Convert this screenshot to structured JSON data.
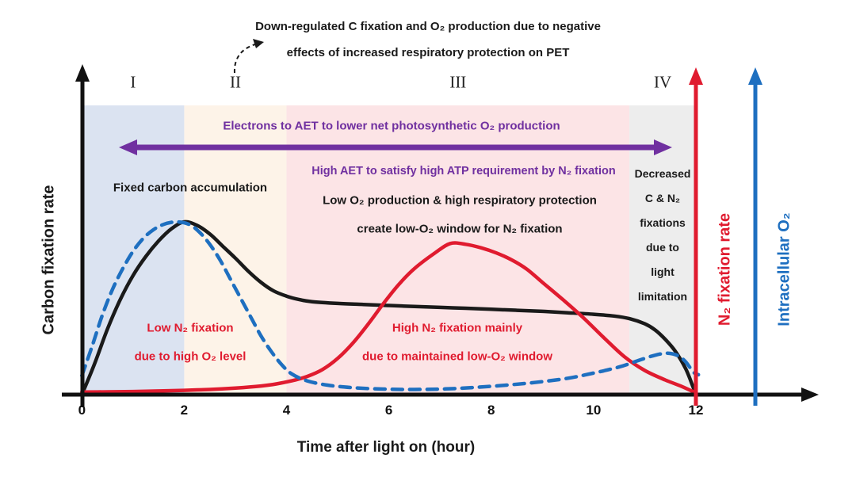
{
  "colors": {
    "carbon": "#1a1a1a",
    "n2_fixation": "#e01b2f",
    "intracellular_o2": "#1e6fc0",
    "aet_purple": "#7030a0",
    "phase1_band": "#dbe3f1",
    "phase2_band": "#fdf3e8",
    "phase3_band": "#fce4e6",
    "phase4_band": "#ededed"
  },
  "annotations": {
    "top_note_line1": "Down-regulated C fixation and O₂ production due to negative",
    "top_note_line2": "effects of increased respiratory protection on PET",
    "aet_heading": "Electrons to AET to lower net photosynthetic O₂ production",
    "fixed_carbon": "Fixed carbon accumulation",
    "high_aet": "High AET to satisfy high ATP requirement by N₂ fixation",
    "low_o2_line1": "Low O₂ production & high respiratory protection",
    "low_o2_line2": "create low-O₂ window for N₂ fixation",
    "decreased_lines": [
      "Decreased",
      "C & N₂",
      "fixations",
      "due to",
      "light",
      "limitation"
    ],
    "low_n2_line1": "Low N₂ fixation",
    "low_n2_line2": "due to high O₂ level",
    "high_n2_line1": "High N₂ fixation mainly",
    "high_n2_line2": "due to maintained low-O₂ window"
  },
  "axes_labels": {
    "y_left": "Carbon fixation rate",
    "y_right_red": "N₂ fixation rate",
    "y_right_blue": "Intracellular O₂",
    "x": "Time after light on (hour)"
  },
  "chart_data": {
    "type": "line",
    "xlabel": "Time after light on (hour)",
    "ylabel_left": "Carbon fixation rate",
    "ylabels_right": [
      "N₂ fixation rate",
      "Intracellular O₂"
    ],
    "x_ticks": [
      0,
      2,
      4,
      6,
      8,
      10,
      12
    ],
    "xlim": [
      0,
      13.3
    ],
    "ylim_relative": [
      0,
      100
    ],
    "grid": false,
    "legend_position": "right-axis-labels",
    "phases": [
      {
        "label": "I",
        "x_start": 0,
        "x_end": 2,
        "color": "#dbe3f1"
      },
      {
        "label": "II",
        "x_start": 2,
        "x_end": 4,
        "color": "#fdf3e8"
      },
      {
        "label": "III",
        "x_start": 4,
        "x_end": 10.7,
        "color": "#fce4e6"
      },
      {
        "label": "IV",
        "x_start": 10.7,
        "x_end": 12,
        "color": "#ededed"
      }
    ],
    "series": [
      {
        "id": "carbon-fixation",
        "name": "Carbon fixation rate",
        "color": "#1a1a1a",
        "style": "solid",
        "points": [
          [
            0,
            0
          ],
          [
            0.25,
            18
          ],
          [
            0.5,
            38
          ],
          [
            0.75,
            55
          ],
          [
            1.0,
            69
          ],
          [
            1.25,
            80
          ],
          [
            1.5,
            89
          ],
          [
            1.75,
            96
          ],
          [
            2.0,
            100
          ],
          [
            2.25,
            98
          ],
          [
            2.5,
            93
          ],
          [
            2.75,
            86
          ],
          [
            3.0,
            79
          ],
          [
            3.25,
            71.5
          ],
          [
            3.5,
            65
          ],
          [
            3.75,
            60
          ],
          [
            4.0,
            57
          ],
          [
            4.25,
            55
          ],
          [
            4.5,
            53.8
          ],
          [
            5.0,
            52.8
          ],
          [
            5.5,
            52.2
          ],
          [
            6.0,
            51.6
          ],
          [
            6.5,
            51
          ],
          [
            7.0,
            50.5
          ],
          [
            7.5,
            50
          ],
          [
            8.0,
            49.4
          ],
          [
            8.5,
            48.8
          ],
          [
            9.0,
            48.2
          ],
          [
            9.5,
            47.4
          ],
          [
            10.0,
            46.5
          ],
          [
            10.4,
            45.5
          ],
          [
            10.7,
            44
          ],
          [
            11.0,
            41
          ],
          [
            11.2,
            37.5
          ],
          [
            11.4,
            32
          ],
          [
            11.6,
            25
          ],
          [
            11.8,
            15
          ],
          [
            11.95,
            4
          ],
          [
            12.0,
            0.5
          ]
        ]
      },
      {
        "id": "n2-fixation",
        "name": "N₂ fixation rate",
        "color": "#e01b2f",
        "style": "solid",
        "points": [
          [
            0,
            1.5
          ],
          [
            0.5,
            1.6
          ],
          [
            1.0,
            1.8
          ],
          [
            1.5,
            2.1
          ],
          [
            2.0,
            2.5
          ],
          [
            2.5,
            3
          ],
          [
            3.0,
            3.8
          ],
          [
            3.5,
            5
          ],
          [
            3.8,
            6.2
          ],
          [
            4.1,
            8
          ],
          [
            4.4,
            10.5
          ],
          [
            4.7,
            14.5
          ],
          [
            5.0,
            21
          ],
          [
            5.3,
            30
          ],
          [
            5.6,
            41
          ],
          [
            5.9,
            53
          ],
          [
            6.2,
            64
          ],
          [
            6.5,
            73
          ],
          [
            6.9,
            82
          ],
          [
            7.2,
            87.5
          ],
          [
            7.5,
            87
          ],
          [
            7.8,
            85
          ],
          [
            8.1,
            82
          ],
          [
            8.4,
            78
          ],
          [
            8.7,
            72.5
          ],
          [
            9.0,
            65
          ],
          [
            9.4,
            55
          ],
          [
            9.8,
            44.5
          ],
          [
            10.2,
            33
          ],
          [
            10.6,
            22
          ],
          [
            11.0,
            14
          ],
          [
            11.4,
            8.5
          ],
          [
            11.7,
            5
          ],
          [
            12.0,
            1
          ]
        ]
      },
      {
        "id": "intracellular-o2",
        "name": "Intracellular O₂",
        "color": "#1e6fc0",
        "style": "dashed",
        "points": [
          [
            0,
            11
          ],
          [
            0.2,
            28
          ],
          [
            0.4,
            46
          ],
          [
            0.6,
            61
          ],
          [
            0.8,
            73
          ],
          [
            1.0,
            83
          ],
          [
            1.2,
            90.5
          ],
          [
            1.4,
            95.5
          ],
          [
            1.6,
            98.6
          ],
          [
            1.85,
            100
          ],
          [
            2.1,
            98.5
          ],
          [
            2.3,
            94
          ],
          [
            2.5,
            87
          ],
          [
            2.7,
            78
          ],
          [
            2.9,
            67
          ],
          [
            3.1,
            56
          ],
          [
            3.3,
            45
          ],
          [
            3.5,
            34
          ],
          [
            3.7,
            25
          ],
          [
            3.9,
            17.5
          ],
          [
            4.1,
            12
          ],
          [
            4.4,
            8
          ],
          [
            4.8,
            5.5
          ],
          [
            5.3,
            4
          ],
          [
            5.9,
            3.2
          ],
          [
            6.5,
            3
          ],
          [
            7.1,
            3.3
          ],
          [
            7.7,
            4.2
          ],
          [
            8.3,
            5.5
          ],
          [
            8.9,
            7.2
          ],
          [
            9.5,
            9.5
          ],
          [
            10.0,
            12.5
          ],
          [
            10.5,
            16
          ],
          [
            10.9,
            20
          ],
          [
            11.2,
            22.8
          ],
          [
            11.45,
            24
          ],
          [
            11.65,
            22.5
          ],
          [
            11.8,
            19
          ],
          [
            11.95,
            13
          ],
          [
            12.05,
            11.5
          ]
        ]
      }
    ]
  }
}
